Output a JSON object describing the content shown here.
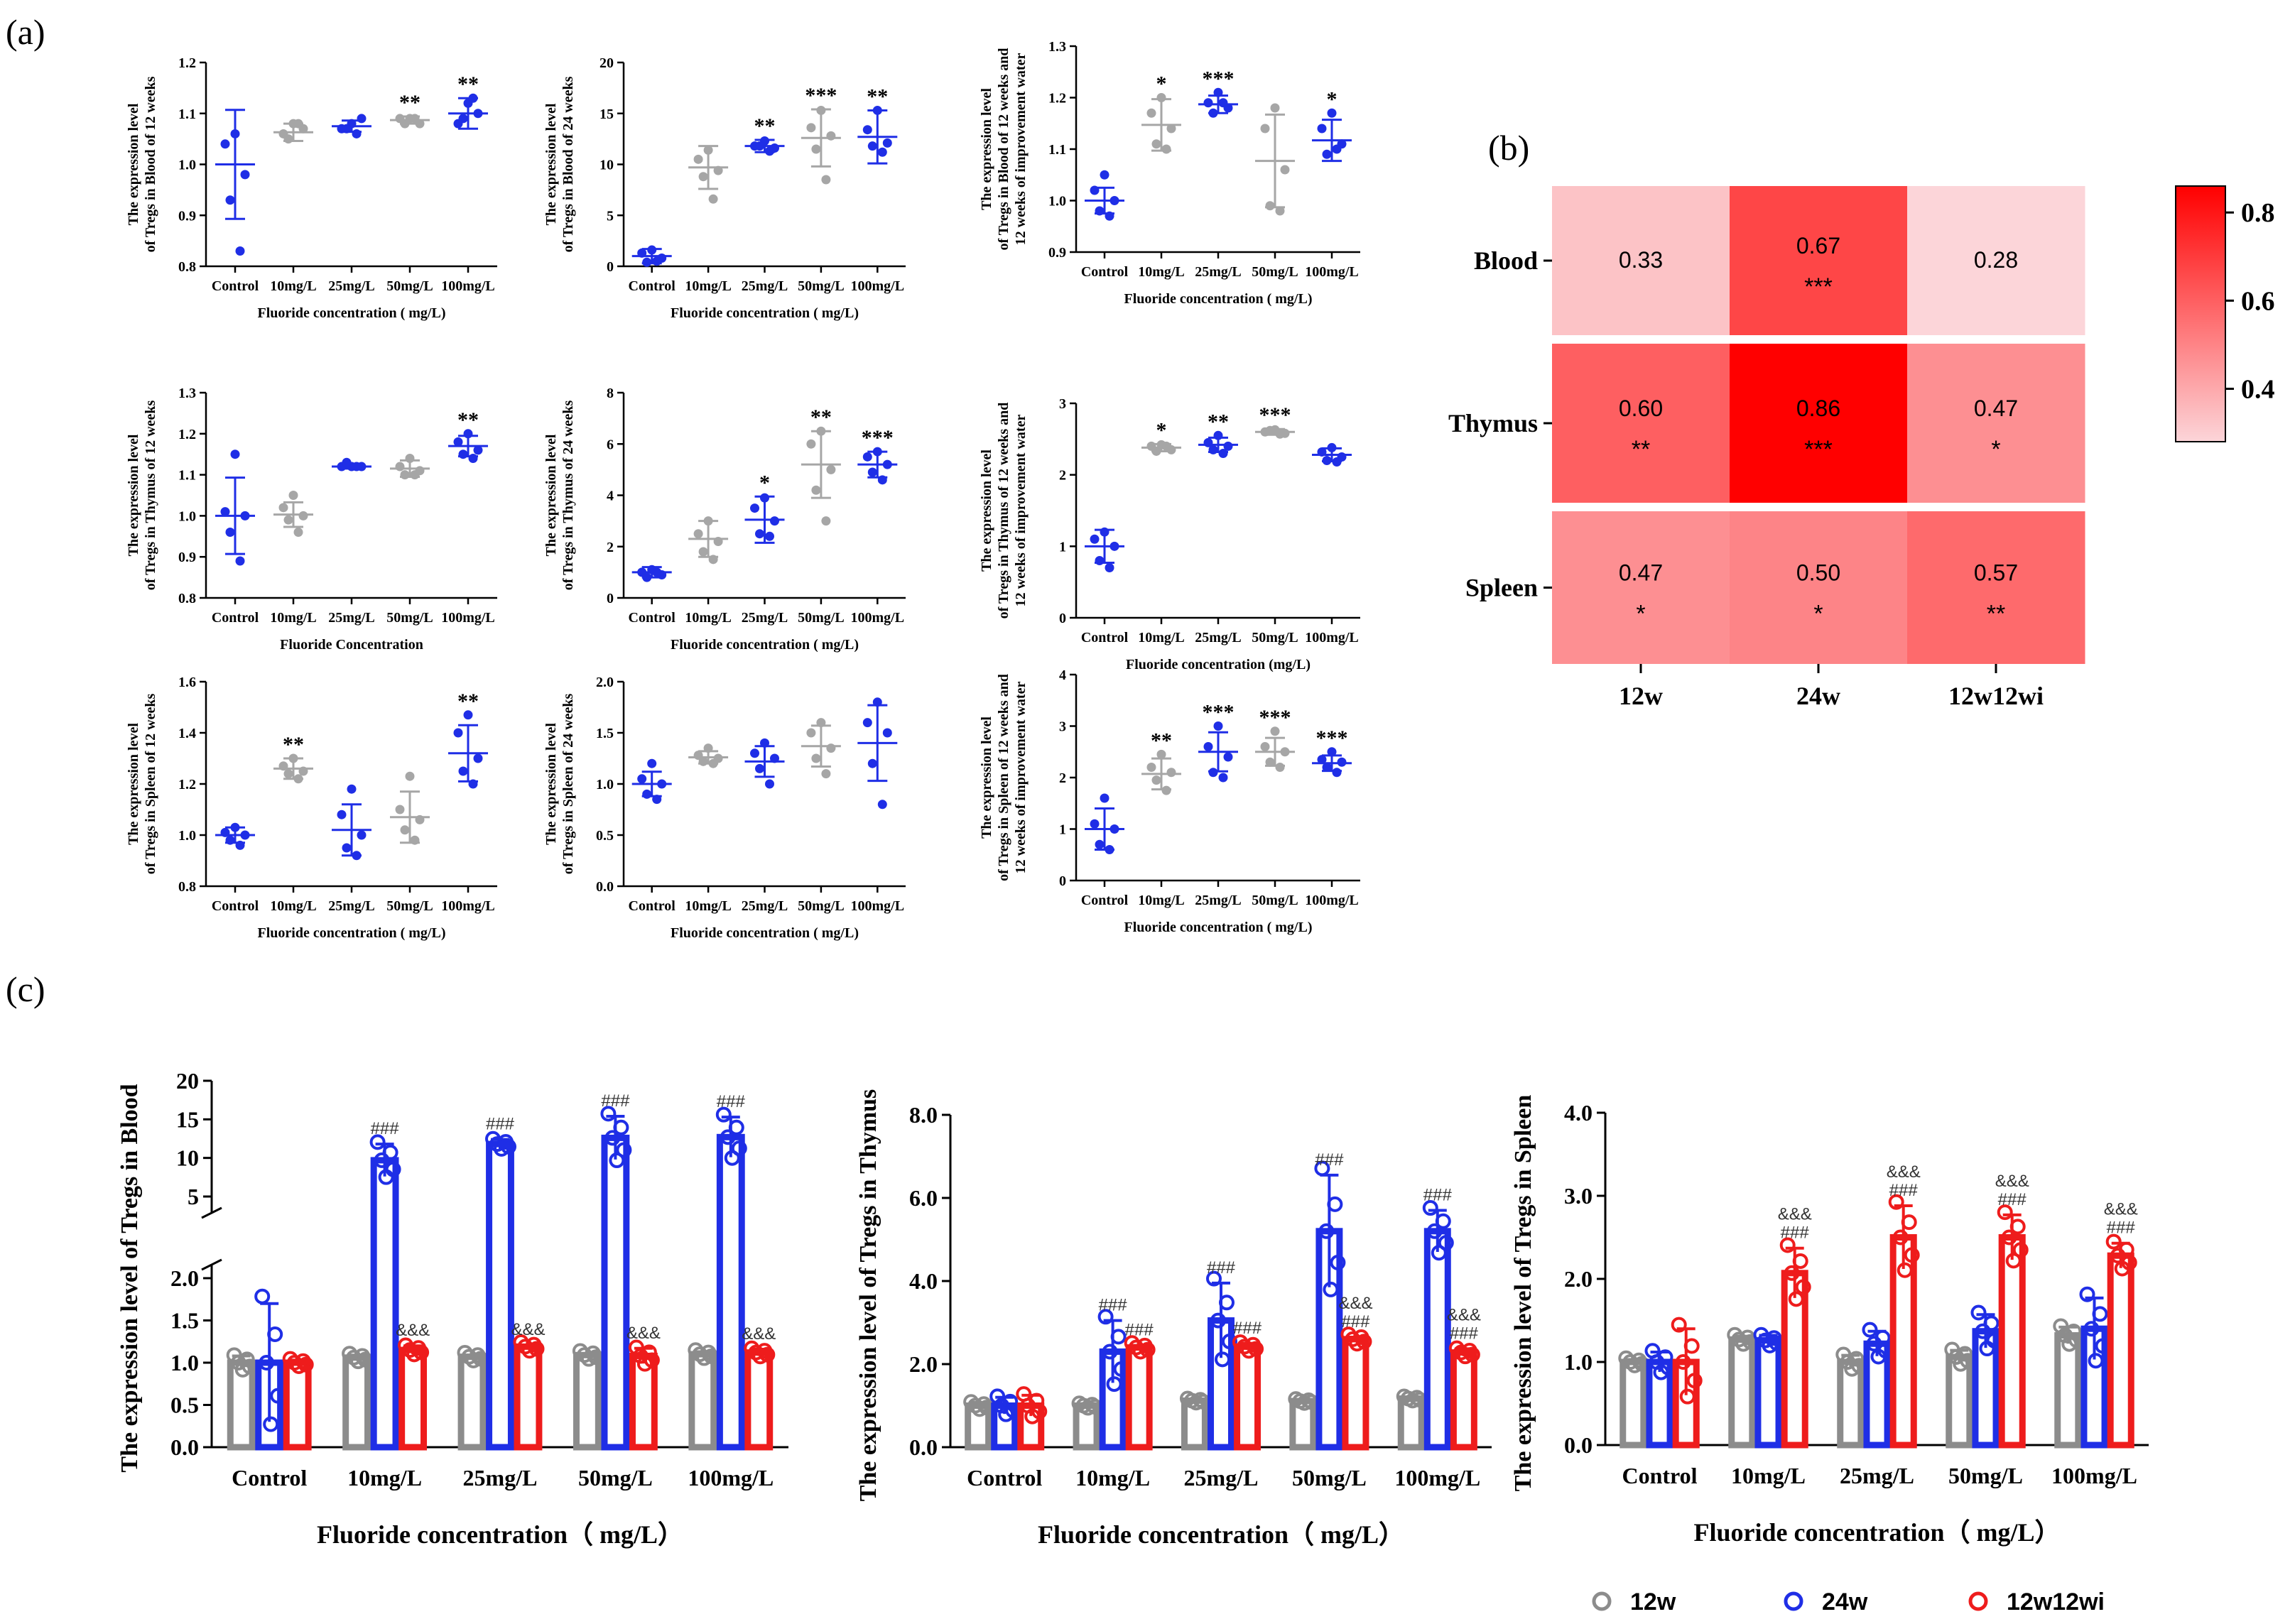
{
  "panels": {
    "a": "(a)",
    "b": "(b)",
    "c": "(c)"
  },
  "colors": {
    "gray": "#a6a6a6",
    "blue": "#1f2ee6",
    "red": "#ee1c1c",
    "darkgray": "#8c8c8c"
  },
  "scatter_categories": [
    "Control",
    "10mg/L",
    "25mg/L",
    "50mg/L",
    "100mg/L"
  ],
  "chart_data": [
    {
      "type": "scatter",
      "id": "blood12",
      "ylabel": [
        "The expression level",
        "of Tregs in Blood of 12  weeks"
      ],
      "xlabel": "Fluoride concentration ( mg/L)",
      "ylim": [
        0.8,
        1.2
      ],
      "yticks": [
        "0.8",
        "0.9",
        "1.0",
        "1.1",
        "1.2"
      ],
      "means": [
        1.0,
        1.063,
        1.075,
        1.087,
        1.1
      ],
      "sd": [
        0.107,
        0.017,
        0.011,
        0.007,
        0.03
      ],
      "points": [
        [
          1.06,
          1.04,
          0.98,
          0.93,
          0.83
        ],
        [
          1.08,
          1.06,
          1.07,
          1.05,
          1.08
        ],
        [
          1.08,
          1.07,
          1.09,
          1.07,
          1.06
        ],
        [
          1.09,
          1.09,
          1.08,
          1.08,
          1.09
        ],
        [
          1.12,
          1.08,
          1.1,
          1.09,
          1.13
        ]
      ],
      "colors": [
        "blue",
        "gray",
        "blue",
        "gray",
        "blue"
      ],
      "sig": [
        "",
        "",
        "",
        "**",
        "**"
      ]
    },
    {
      "type": "scatter",
      "id": "blood24",
      "ylabel": [
        "The expression level",
        "of Tregs in Blood of 24 weeks"
      ],
      "xlabel": "Fluoride concentration ( mg/L)",
      "ylim": [
        0,
        20
      ],
      "yticks": [
        "0",
        "5",
        "10",
        "15",
        "20"
      ],
      "means": [
        1.0,
        9.7,
        11.8,
        12.6,
        12.7
      ],
      "sd": [
        0.7,
        2.1,
        0.6,
        2.8,
        2.6
      ],
      "points": [
        [
          1.6,
          1.3,
          0.8,
          0.4,
          0.5
        ],
        [
          11.4,
          10.5,
          9.4,
          8.8,
          6.6
        ],
        [
          12.3,
          11.8,
          11.6,
          11.8,
          11.3
        ],
        [
          15.3,
          13.6,
          12.8,
          11.5,
          8.5
        ],
        [
          15.3,
          13.4,
          12.1,
          11.8,
          11.2
        ]
      ],
      "colors": [
        "blue",
        "gray",
        "blue",
        "gray",
        "blue"
      ],
      "sig": [
        "",
        "",
        "**",
        "***",
        "**"
      ]
    },
    {
      "type": "scatter",
      "id": "blood12w12wi",
      "ylabel": [
        "The expression level",
        "of Tregs in Blood of 12 weeks and",
        "12 weeks of improvement water"
      ],
      "xlabel": "Fluoride concentration ( mg/L)",
      "ylim": [
        0.9,
        1.3
      ],
      "yticks": [
        "0.9",
        "1.0",
        "1.1",
        "1.2",
        "1.3"
      ],
      "means": [
        1.0,
        1.147,
        1.187,
        1.077,
        1.117
      ],
      "sd": [
        0.025,
        0.05,
        0.017,
        0.09,
        0.04
      ],
      "points": [
        [
          1.05,
          1.02,
          1.0,
          0.98,
          0.97
        ],
        [
          1.2,
          1.17,
          1.14,
          1.11,
          1.1
        ],
        [
          1.21,
          1.19,
          1.18,
          1.17,
          1.19
        ],
        [
          1.18,
          1.14,
          1.06,
          0.99,
          0.98
        ],
        [
          1.17,
          1.14,
          1.11,
          1.09,
          1.1
        ]
      ],
      "colors": [
        "blue",
        "gray",
        "blue",
        "gray",
        "blue"
      ],
      "sig": [
        "",
        "*",
        "***",
        "",
        "*"
      ]
    },
    {
      "type": "scatter",
      "id": "thymus12",
      "ylabel": [
        "The expression level",
        "of Tregs in Thymus of 12 weeks"
      ],
      "xlabel": "Fluoride Concentration",
      "ylim": [
        0.8,
        1.3
      ],
      "yticks": [
        "0.8",
        "0.9",
        "1.0",
        "1.1",
        "1.2",
        "1.3"
      ],
      "means": [
        1.0,
        1.003,
        1.12,
        1.115,
        1.17
      ],
      "sd": [
        0.093,
        0.03,
        0.005,
        0.02,
        0.025
      ],
      "points": [
        [
          1.15,
          1.01,
          1.0,
          0.96,
          0.89
        ],
        [
          1.05,
          1.02,
          1.0,
          0.99,
          0.96
        ],
        [
          1.12,
          1.12,
          1.12,
          1.13,
          1.12
        ],
        [
          1.14,
          1.12,
          1.11,
          1.1,
          1.1
        ],
        [
          1.2,
          1.18,
          1.16,
          1.15,
          1.14
        ]
      ],
      "colors": [
        "blue",
        "gray",
        "blue",
        "gray",
        "blue"
      ],
      "sig": [
        "",
        "",
        "",
        "",
        "**"
      ]
    },
    {
      "type": "scatter",
      "id": "thymus24",
      "ylabel": [
        "The expression level",
        "of Tregs in Thymus  of 24 weeks"
      ],
      "xlabel": "Fluoride concentration ( mg/L)",
      "ylim": [
        0,
        8
      ],
      "yticks": [
        "0",
        "2",
        "4",
        "6",
        "8"
      ],
      "means": [
        1.0,
        2.3,
        3.05,
        5.2,
        5.2
      ],
      "sd": [
        0.2,
        0.7,
        0.9,
        1.3,
        0.5
      ],
      "points": [
        [
          1.1,
          1.0,
          0.9,
          0.8,
          1.0
        ],
        [
          3.0,
          2.5,
          2.2,
          1.8,
          1.5
        ],
        [
          3.9,
          3.5,
          3.0,
          2.5,
          2.4
        ],
        [
          6.5,
          6.0,
          5.0,
          4.2,
          3.0
        ],
        [
          5.7,
          5.5,
          5.2,
          4.9,
          4.6
        ]
      ],
      "colors": [
        "blue",
        "gray",
        "blue",
        "gray",
        "blue"
      ],
      "sig": [
        "",
        "",
        "*",
        "**",
        "***"
      ]
    },
    {
      "type": "scatter",
      "id": "thymus12w12wi",
      "ylabel": [
        "The expression level",
        "of Tregs in Thymus of 12 weeks and",
        "12 weeks of improvement water"
      ],
      "xlabel": "Fluoride concentration (mg/L)",
      "ylim": [
        0,
        3
      ],
      "yticks": [
        "0",
        "1",
        "2",
        "3"
      ],
      "means": [
        1.0,
        2.38,
        2.42,
        2.6,
        2.28
      ],
      "sd": [
        0.23,
        0.05,
        0.1,
        0.04,
        0.09
      ],
      "points": [
        [
          1.2,
          1.1,
          1.0,
          0.8,
          0.7
        ],
        [
          2.42,
          2.4,
          2.35,
          2.33,
          2.4
        ],
        [
          2.55,
          2.45,
          2.4,
          2.35,
          2.3
        ],
        [
          2.63,
          2.6,
          2.58,
          2.62,
          2.57
        ],
        [
          2.38,
          2.32,
          2.25,
          2.2,
          2.18
        ]
      ],
      "colors": [
        "blue",
        "gray",
        "blue",
        "gray",
        "blue"
      ],
      "sig": [
        "",
        "*",
        "**",
        "***",
        ""
      ]
    },
    {
      "type": "scatter",
      "id": "spleen12",
      "ylabel": [
        "The expression level",
        "of Tregs in Spleen of 12  weeks"
      ],
      "xlabel": "Fluoride concentration ( mg/L)",
      "ylim": [
        0.8,
        1.6
      ],
      "yticks": [
        "0.8",
        "1.0",
        "1.2",
        "1.4",
        "1.6"
      ],
      "means": [
        1.0,
        1.26,
        1.02,
        1.07,
        1.32
      ],
      "sd": [
        0.03,
        0.04,
        0.1,
        0.1,
        0.11
      ],
      "points": [
        [
          1.03,
          1.01,
          1.0,
          0.98,
          0.96
        ],
        [
          1.3,
          1.27,
          1.25,
          1.24,
          1.22
        ],
        [
          1.18,
          1.08,
          1.0,
          0.95,
          0.92
        ],
        [
          1.23,
          1.1,
          1.06,
          1.02,
          0.98
        ],
        [
          1.47,
          1.4,
          1.3,
          1.25,
          1.2
        ]
      ],
      "colors": [
        "blue",
        "gray",
        "blue",
        "gray",
        "blue"
      ],
      "sig": [
        "",
        "**",
        "",
        "",
        "**"
      ]
    },
    {
      "type": "scatter",
      "id": "spleen24",
      "ylabel": [
        "The expression level",
        "of Tregs in Spleen of 24 weeks"
      ],
      "xlabel": "Fluoride concentration ( mg/L)",
      "ylim": [
        0,
        2
      ],
      "yticks": [
        "0.0",
        "0.5",
        "1.0",
        "1.5",
        "2.0"
      ],
      "means": [
        1.0,
        1.26,
        1.22,
        1.37,
        1.4
      ],
      "sd": [
        0.12,
        0.06,
        0.15,
        0.2,
        0.37
      ],
      "points": [
        [
          1.2,
          1.05,
          1.0,
          0.9,
          0.85
        ],
        [
          1.35,
          1.28,
          1.25,
          1.22,
          1.2
        ],
        [
          1.4,
          1.3,
          1.25,
          1.15,
          1.0
        ],
        [
          1.6,
          1.5,
          1.35,
          1.25,
          1.1
        ],
        [
          1.8,
          1.6,
          1.5,
          1.2,
          0.8
        ]
      ],
      "colors": [
        "blue",
        "gray",
        "blue",
        "gray",
        "blue"
      ],
      "sig": [
        "",
        "",
        "",
        "",
        ""
      ]
    },
    {
      "type": "scatter",
      "id": "spleen12w12wi",
      "ylabel": [
        "The expression level",
        "of Tregs in Spleen of 12 weeks and",
        "12 weeks of improvement water"
      ],
      "xlabel": "Fluoride concentration ( mg/L)",
      "ylim": [
        0,
        4
      ],
      "yticks": [
        "0",
        "1",
        "2",
        "3",
        "4"
      ],
      "means": [
        1.0,
        2.07,
        2.5,
        2.5,
        2.28
      ],
      "sd": [
        0.4,
        0.3,
        0.38,
        0.27,
        0.15
      ],
      "points": [
        [
          1.6,
          1.1,
          1.0,
          0.7,
          0.6
        ],
        [
          2.45,
          2.2,
          2.1,
          1.95,
          1.75
        ],
        [
          3.0,
          2.6,
          2.4,
          2.1,
          2.0
        ],
        [
          2.9,
          2.6,
          2.5,
          2.3,
          2.2
        ],
        [
          2.5,
          2.35,
          2.3,
          2.2,
          2.1
        ]
      ],
      "colors": [
        "blue",
        "gray",
        "blue",
        "gray",
        "blue"
      ],
      "sig": [
        "",
        "**",
        "***",
        "***",
        "***"
      ]
    },
    {
      "type": "heatmap",
      "id": "heatmap",
      "rows": [
        "Blood",
        "Thymus",
        "Spleen"
      ],
      "cols": [
        "12w",
        "24w",
        "12w12wi"
      ],
      "values": [
        [
          0.33,
          0.67,
          0.28
        ],
        [
          0.6,
          0.86,
          0.47
        ],
        [
          0.47,
          0.5,
          0.57
        ]
      ],
      "labels": [
        [
          "0.33",
          "0.67",
          "0.28"
        ],
        [
          "0.60",
          "0.86",
          "0.47"
        ],
        [
          "0.47",
          "0.50",
          "0.57"
        ]
      ],
      "sig": [
        [
          "",
          "***",
          ""
        ],
        [
          "**",
          "***",
          "*"
        ],
        [
          "*",
          "*",
          "**"
        ]
      ],
      "colorbar": {
        "min": 0.28,
        "max": 0.86,
        "ticks": [
          "0.8",
          "0.6",
          "0.4"
        ],
        "tick_values": [
          0.8,
          0.6,
          0.4
        ]
      }
    },
    {
      "type": "bar",
      "id": "barBlood",
      "ylabel": "The expression level of Tregs in Blood",
      "xlabel": "Fluoride concentration（ mg/L）",
      "categories": [
        "Control",
        "10mg/L",
        "25mg/L",
        "50mg/L",
        "100mg/L"
      ],
      "broken_axis": {
        "lower": [
          0,
          2.0
        ],
        "upper": [
          5,
          20
        ]
      },
      "lower_ticks": [
        "0.0",
        "0.5",
        "1.0",
        "1.5",
        "2.0"
      ],
      "upper_ticks": [
        "5",
        "10",
        "15",
        "20"
      ],
      "series": [
        {
          "name": "12w",
          "color": "darkgray",
          "values": [
            1.0,
            1.06,
            1.07,
            1.09,
            1.1
          ],
          "sd": [
            0.08,
            0.03,
            0.02,
            0.01,
            0.03
          ],
          "annot": [
            "",
            "",
            "",
            "",
            ""
          ]
        },
        {
          "name": "24w",
          "color": "blue",
          "values": [
            1.0,
            9.7,
            11.8,
            12.6,
            12.7
          ],
          "sd": [
            0.7,
            2.1,
            0.6,
            2.8,
            2.6
          ],
          "annot": [
            "",
            "###",
            "###",
            "###",
            "###"
          ]
        },
        {
          "name": "12w12wi",
          "color": "red",
          "values": [
            1.0,
            1.15,
            1.19,
            1.08,
            1.12
          ],
          "sd": [
            0.03,
            0.05,
            0.02,
            0.09,
            0.04
          ],
          "annot": [
            "",
            "&&&",
            "&&&",
            "&&&",
            "&&&"
          ]
        }
      ]
    },
    {
      "type": "bar",
      "id": "barThymus",
      "ylabel": "The expression level of Tregs in Thymus",
      "xlabel": "Fluoride concentration（ mg/L）",
      "categories": [
        "Control",
        "10mg/L",
        "25mg/L",
        "50mg/L",
        "100mg/L"
      ],
      "ylim": [
        0,
        8
      ],
      "yticks": [
        "0.0",
        "2.0",
        "4.0",
        "6.0",
        "8.0"
      ],
      "series": [
        {
          "name": "12w",
          "color": "darkgray",
          "values": [
            1.0,
            1.0,
            1.12,
            1.11,
            1.17
          ],
          "sd": [
            0.08,
            0.05,
            0.02,
            0.03,
            0.03
          ],
          "annot": [
            "",
            "",
            "",
            "",
            ""
          ]
        },
        {
          "name": "24w",
          "color": "blue",
          "values": [
            1.0,
            2.3,
            3.05,
            5.2,
            5.2
          ],
          "sd": [
            0.2,
            0.75,
            0.9,
            1.35,
            0.5
          ],
          "annot": [
            "",
            "###",
            "###",
            "###",
            "###"
          ]
        },
        {
          "name": "12w12wi",
          "color": "red",
          "values": [
            1.0,
            2.4,
            2.42,
            2.6,
            2.28
          ],
          "sd": [
            0.25,
            0.05,
            0.08,
            0.05,
            0.09
          ],
          "annot": [
            "",
            "###",
            "###",
            "&&&|###",
            "&&&|###"
          ]
        }
      ]
    },
    {
      "type": "bar",
      "id": "barSpleen",
      "ylabel": "The expression level of  Tregs in Spleen",
      "xlabel": "Fluoride concentration（ mg/L）",
      "categories": [
        "Control",
        "10mg/L",
        "25mg/L",
        "50mg/L",
        "100mg/L"
      ],
      "ylim": [
        0,
        4
      ],
      "yticks": [
        "0.0",
        "1.0",
        "2.0",
        "3.0",
        "4.0"
      ],
      "series": [
        {
          "name": "12w",
          "color": "darkgray",
          "values": [
            1.0,
            1.27,
            1.0,
            1.06,
            1.32
          ],
          "sd": [
            0.03,
            0.04,
            0.08,
            0.08,
            0.1
          ],
          "annot": [
            "",
            "",
            "",
            "",
            ""
          ]
        },
        {
          "name": "24w",
          "color": "blue",
          "values": [
            1.0,
            1.26,
            1.22,
            1.37,
            1.4
          ],
          "sd": [
            0.12,
            0.06,
            0.15,
            0.2,
            0.37
          ],
          "annot": [
            "",
            "",
            "",
            "",
            ""
          ]
        },
        {
          "name": "12w12wi",
          "color": "red",
          "values": [
            1.0,
            2.07,
            2.5,
            2.5,
            2.28
          ],
          "sd": [
            0.4,
            0.3,
            0.38,
            0.27,
            0.15
          ],
          "annot": [
            "",
            "&&&|###",
            "&&&|###",
            "&&&|###",
            "&&&|###"
          ]
        }
      ]
    }
  ],
  "legend": [
    {
      "name": "12w",
      "color": "darkgray"
    },
    {
      "name": "24w",
      "color": "blue"
    },
    {
      "name": "12w12wi",
      "color": "red"
    }
  ]
}
